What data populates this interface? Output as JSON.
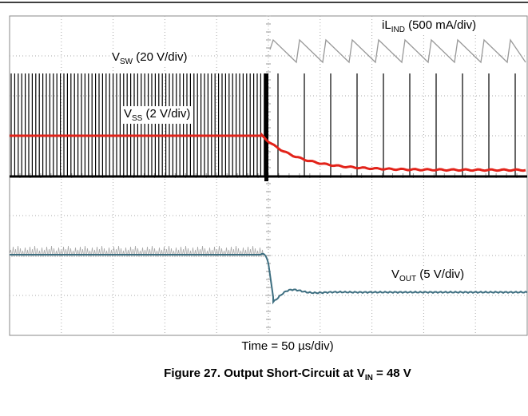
{
  "labels": [
    {
      "main": "iL",
      "sub": "IND",
      "rest": " (500 mA/div)"
    },
    {
      "main": "V",
      "sub": "SW",
      "rest": " (20 V/div)"
    },
    {
      "main": "V",
      "sub": "SS",
      "rest": " (2 V/div)"
    },
    {
      "main": "V",
      "sub": "OUT",
      "rest": " (5 V/div)"
    }
  ],
  "time_label": "Time = 50 µs/div)",
  "caption": {
    "main": "Figure 27. Output Short-Circuit at V",
    "sub": "IN",
    "rest": " = 48 V"
  }
}
